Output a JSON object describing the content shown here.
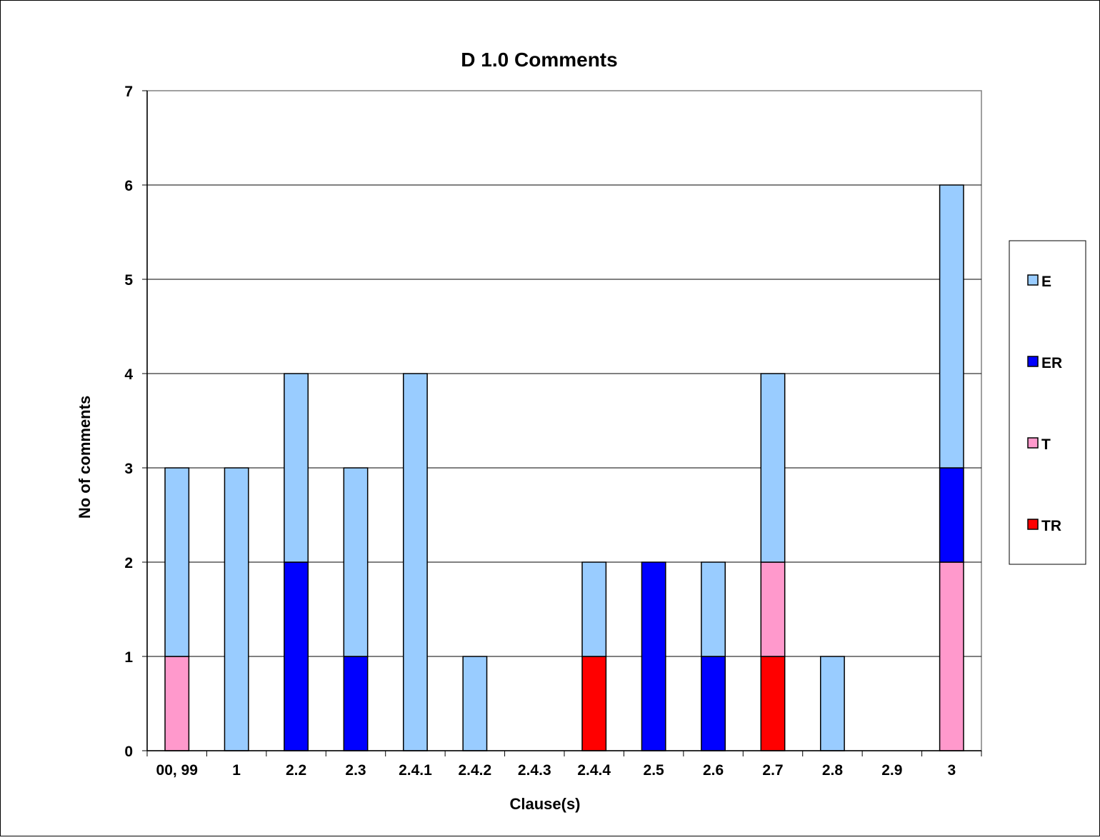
{
  "chart_data": {
    "type": "bar",
    "stacked": true,
    "title": "D 1.0 Comments",
    "xlabel": "Clause(s)",
    "ylabel": "No of comments",
    "ylim": [
      0,
      7
    ],
    "yticks": [
      "0",
      "1",
      "2",
      "3",
      "4",
      "5",
      "6",
      "7"
    ],
    "grid": true,
    "legend_position": "right",
    "categories": [
      "00, 99",
      "1",
      "2.2",
      "2.3",
      "2.4.1",
      "2.4.2",
      "2.4.3",
      "2.4.4",
      "2.5",
      "2.6",
      "2.7",
      "2.8",
      "2.9",
      "3"
    ],
    "series": [
      {
        "name": "TR",
        "color": "#ff0000",
        "values": [
          0,
          0,
          0,
          0,
          0,
          0,
          0,
          1,
          0,
          0,
          1,
          0,
          0,
          0
        ]
      },
      {
        "name": "T",
        "color": "#ff99cc",
        "values": [
          1,
          0,
          0,
          0,
          0,
          0,
          0,
          0,
          0,
          0,
          1,
          0,
          0,
          2
        ]
      },
      {
        "name": "ER",
        "color": "#0000ff",
        "values": [
          0,
          0,
          2,
          1,
          0,
          0,
          0,
          0,
          2,
          1,
          0,
          0,
          0,
          1
        ]
      },
      {
        "name": "E",
        "color": "#99ccff",
        "values": [
          2,
          3,
          2,
          2,
          4,
          1,
          0,
          1,
          0,
          1,
          2,
          1,
          0,
          3
        ]
      }
    ],
    "legend_order": [
      "E",
      "ER",
      "T",
      "TR"
    ]
  }
}
